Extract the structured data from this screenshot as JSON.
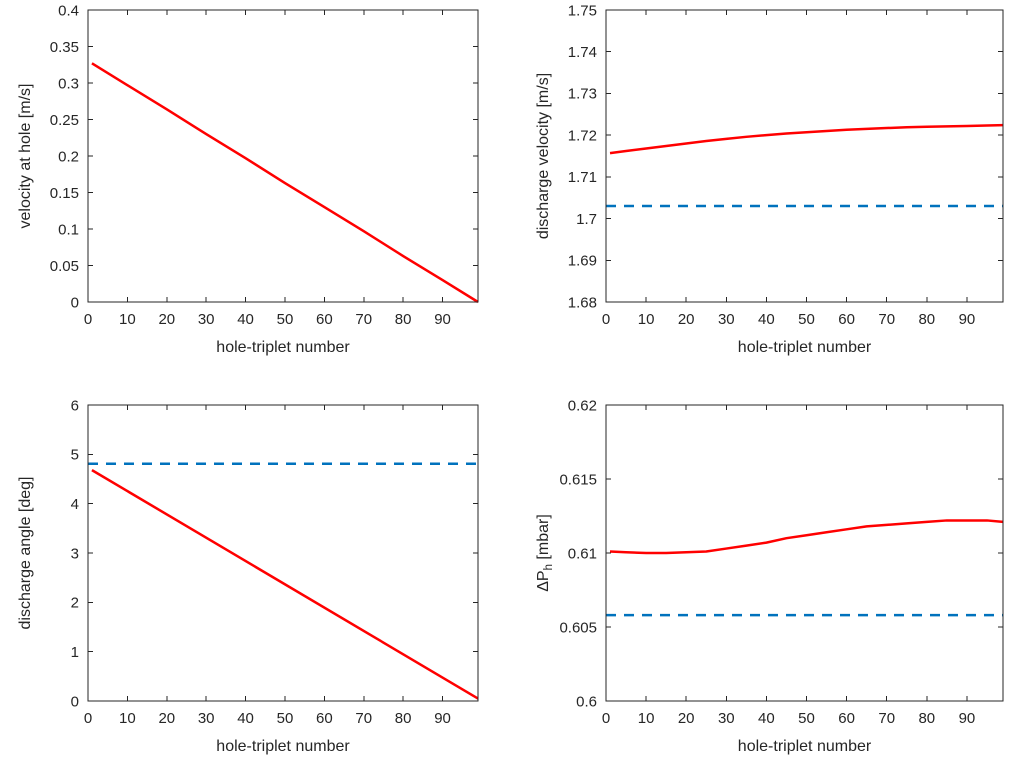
{
  "figure": {
    "background": "#ffffff",
    "axis_color": "#262626",
    "series_color_red": "#ff0000",
    "series_color_blue": "#0072bd"
  },
  "chart_data": [
    {
      "id": "velocity-at-hole",
      "type": "line",
      "title": "",
      "xlabel": "hole-triplet number",
      "ylabel": "velocity at hole [m/s]",
      "xlim": [
        0,
        99
      ],
      "ylim": [
        0,
        0.4
      ],
      "xticks": [
        0,
        10,
        20,
        30,
        40,
        50,
        60,
        70,
        80,
        90
      ],
      "xtick_labels": [
        "0",
        "10",
        "20",
        "30",
        "40",
        "50",
        "60",
        "70",
        "80",
        "90"
      ],
      "yticks": [
        0,
        0.05,
        0.1,
        0.15,
        0.2,
        0.25,
        0.3,
        0.35,
        0.4
      ],
      "ytick_labels": [
        "0",
        "0.05",
        "0.1",
        "0.15",
        "0.2",
        "0.25",
        "0.3",
        "0.35",
        "0.4"
      ],
      "grid": false,
      "legend": null,
      "series": [
        {
          "name": "velocity-at-hole-line",
          "color": "#ff0000",
          "style": "solid",
          "width": 2.5,
          "x": [
            1,
            10,
            20,
            30,
            40,
            50,
            60,
            70,
            80,
            90,
            99
          ],
          "y": [
            0.327,
            0.297,
            0.264,
            0.23,
            0.197,
            0.163,
            0.13,
            0.097,
            0.063,
            0.03,
            0.0
          ]
        }
      ]
    },
    {
      "id": "discharge-velocity",
      "type": "line",
      "title": "",
      "xlabel": "hole-triplet number",
      "ylabel": "discharge velocity [m/s]",
      "xlim": [
        0,
        99
      ],
      "ylim": [
        1.68,
        1.75
      ],
      "xticks": [
        0,
        10,
        20,
        30,
        40,
        50,
        60,
        70,
        80,
        90
      ],
      "xtick_labels": [
        "0",
        "10",
        "20",
        "30",
        "40",
        "50",
        "60",
        "70",
        "80",
        "90"
      ],
      "yticks": [
        1.68,
        1.69,
        1.7,
        1.71,
        1.72,
        1.73,
        1.74,
        1.75
      ],
      "ytick_labels": [
        "1.68",
        "1.69",
        "1.7",
        "1.71",
        "1.72",
        "1.73",
        "1.74",
        "1.75"
      ],
      "grid": false,
      "legend": null,
      "series": [
        {
          "name": "discharge-velocity-curve",
          "color": "#ff0000",
          "style": "solid",
          "width": 2.5,
          "x": [
            1,
            5,
            10,
            15,
            20,
            25,
            30,
            35,
            40,
            45,
            50,
            55,
            60,
            65,
            70,
            75,
            80,
            85,
            90,
            95,
            99
          ],
          "y": [
            1.7157,
            1.7162,
            1.7168,
            1.7174,
            1.718,
            1.7186,
            1.7191,
            1.7196,
            1.72,
            1.7204,
            1.7207,
            1.721,
            1.7213,
            1.7215,
            1.7217,
            1.7219,
            1.722,
            1.7221,
            1.7222,
            1.7223,
            1.7224
          ]
        },
        {
          "name": "discharge-velocity-reference",
          "color": "#0072bd",
          "style": "dashed",
          "width": 2.5,
          "x": [
            0,
            99
          ],
          "y": [
            1.703,
            1.703
          ]
        }
      ]
    },
    {
      "id": "discharge-angle",
      "type": "line",
      "title": "",
      "xlabel": "hole-triplet number",
      "ylabel": "discharge angle [deg]",
      "xlim": [
        0,
        99
      ],
      "ylim": [
        0,
        6
      ],
      "xticks": [
        0,
        10,
        20,
        30,
        40,
        50,
        60,
        70,
        80,
        90
      ],
      "xtick_labels": [
        "0",
        "10",
        "20",
        "30",
        "40",
        "50",
        "60",
        "70",
        "80",
        "90"
      ],
      "yticks": [
        0,
        1,
        2,
        3,
        4,
        5,
        6
      ],
      "ytick_labels": [
        "0",
        "1",
        "2",
        "3",
        "4",
        "5",
        "6"
      ],
      "grid": false,
      "legend": null,
      "series": [
        {
          "name": "discharge-angle-line",
          "color": "#ff0000",
          "style": "solid",
          "width": 2.5,
          "x": [
            1,
            99
          ],
          "y": [
            4.68,
            0.05
          ]
        },
        {
          "name": "discharge-angle-reference",
          "color": "#0072bd",
          "style": "dashed",
          "width": 2.5,
          "x": [
            0,
            99
          ],
          "y": [
            4.81,
            4.81
          ]
        }
      ]
    },
    {
      "id": "delta-p-hole",
      "type": "line",
      "title": "",
      "xlabel": "hole-triplet number",
      "ylabel": "ΔP_h [mbar]",
      "ylabel_parts": {
        "main": "ΔP",
        "sub": "h",
        "rest": " [mbar]"
      },
      "xlim": [
        0,
        99
      ],
      "ylim": [
        0.6,
        0.62
      ],
      "xticks": [
        0,
        10,
        20,
        30,
        40,
        50,
        60,
        70,
        80,
        90
      ],
      "xtick_labels": [
        "0",
        "10",
        "20",
        "30",
        "40",
        "50",
        "60",
        "70",
        "80",
        "90"
      ],
      "yticks": [
        0.6,
        0.605,
        0.61,
        0.615,
        0.62
      ],
      "ytick_labels": [
        "0.6",
        "0.605",
        "0.61",
        "0.615",
        "0.62"
      ],
      "grid": false,
      "legend": null,
      "series": [
        {
          "name": "delta-p-curve",
          "color": "#ff0000",
          "style": "solid",
          "width": 2.5,
          "x": [
            1,
            5,
            10,
            15,
            20,
            25,
            30,
            35,
            40,
            45,
            50,
            55,
            60,
            65,
            70,
            75,
            80,
            85,
            90,
            95,
            99
          ],
          "y": [
            0.6101,
            0.61005,
            0.61,
            0.61,
            0.61005,
            0.6101,
            0.6103,
            0.6105,
            0.6107,
            0.611,
            0.6112,
            0.6114,
            0.6116,
            0.6118,
            0.6119,
            0.612,
            0.6121,
            0.6122,
            0.6122,
            0.6122,
            0.6121
          ]
        },
        {
          "name": "delta-p-reference",
          "color": "#0072bd",
          "style": "dashed",
          "width": 2.5,
          "x": [
            0,
            99
          ],
          "y": [
            0.6058,
            0.6058
          ]
        }
      ]
    }
  ]
}
